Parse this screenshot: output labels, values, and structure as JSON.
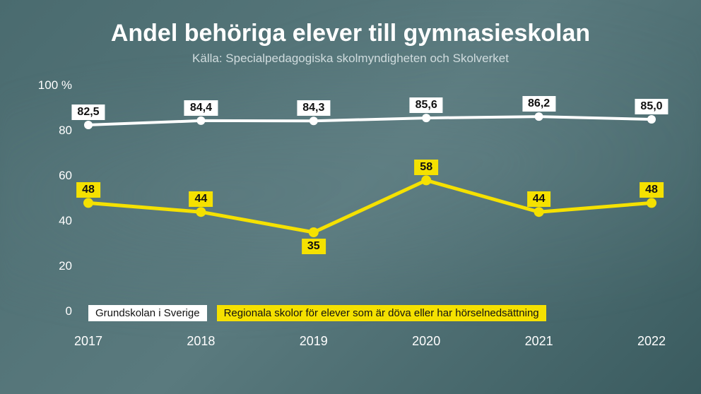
{
  "title": "Andel behöriga elever till gymnasieskolan",
  "subtitle": "Källa: Specialpedagogiska skolmyndigheten och Skolverket",
  "chart": {
    "type": "line",
    "background_color": "#4a6b6f",
    "ylim": [
      0,
      100
    ],
    "ytick_step": 20,
    "y_unit": "%",
    "y_ticks": [
      {
        "value": 0,
        "label": "0"
      },
      {
        "value": 20,
        "label": "20"
      },
      {
        "value": 40,
        "label": "40"
      },
      {
        "value": 60,
        "label": "60"
      },
      {
        "value": 80,
        "label": "80"
      },
      {
        "value": 100,
        "label": "100 %"
      }
    ],
    "x_categories": [
      "2017",
      "2018",
      "2019",
      "2020",
      "2021",
      "2022"
    ],
    "series": [
      {
        "name": "Grundskolan i Sverige",
        "color": "#ffffff",
        "label_bg": "#ffffff",
        "line_width": 4,
        "marker_size": 6,
        "values": [
          82.5,
          84.4,
          84.3,
          85.6,
          86.2,
          85.0
        ],
        "display_values": [
          "82,5",
          "84,4",
          "84,3",
          "85,6",
          "86,2",
          "85,0"
        ],
        "label_offset_y": -18
      },
      {
        "name": "Regionala skolor för elever som är döva eller har hörselnedsättning",
        "color": "#f5e100",
        "label_bg": "#f5e100",
        "line_width": 5,
        "marker_size": 7,
        "values": [
          48,
          44,
          35,
          58,
          44,
          48
        ],
        "display_values": [
          "48",
          "44",
          "35",
          "58",
          "44",
          "48"
        ],
        "label_offset_y": -18
      }
    ],
    "legend": {
      "items": [
        {
          "label": "Grundskolan i Sverige",
          "bg": "#ffffff"
        },
        {
          "label": "Regionala skolor för elever som är döva eller har hörselnedsättning",
          "bg": "#f5e100"
        }
      ]
    },
    "title_fontsize": 34,
    "subtitle_fontsize": 17,
    "axis_fontsize": 17,
    "label_fontsize": 16
  }
}
